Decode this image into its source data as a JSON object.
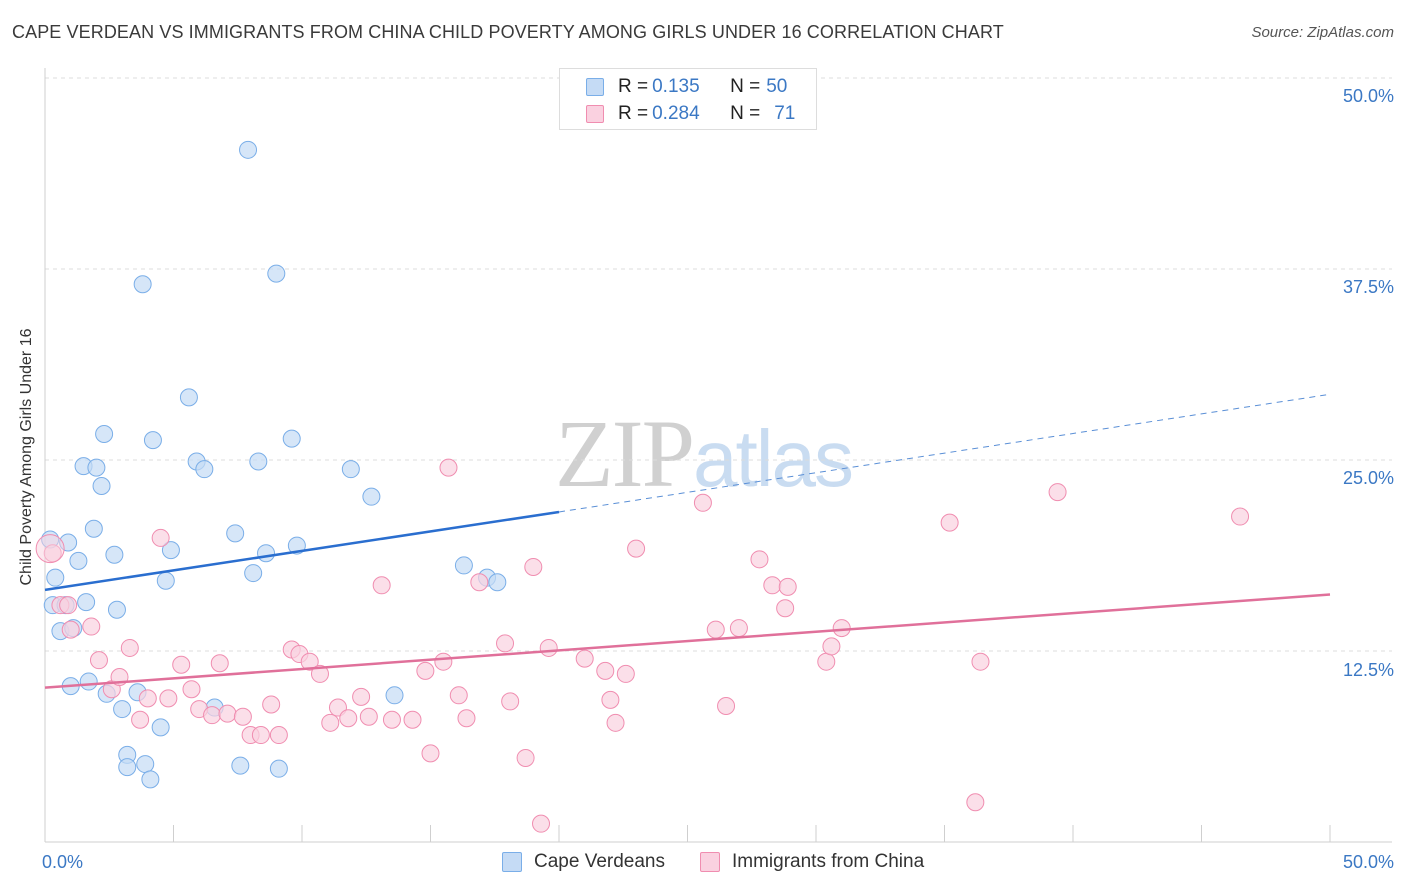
{
  "title": "CAPE VERDEAN VS IMMIGRANTS FROM CHINA CHILD POVERTY AMONG GIRLS UNDER 16 CORRELATION CHART",
  "source": "Source: ZipAtlas.com",
  "watermark": {
    "zip": "ZIP",
    "atlas": "atlas"
  },
  "legend": {
    "rows": [
      {
        "r_label": "R = ",
        "r_value": "0.135",
        "n_label": "N = ",
        "n_value": "50"
      },
      {
        "r_label": "R = ",
        "r_value": "0.284",
        "n_label": "N = ",
        "n_value": "71"
      }
    ]
  },
  "chart_data": {
    "type": "scatter",
    "ylabel": "Child Poverty Among Girls Under 16",
    "xlim": [
      0,
      50
    ],
    "ylim": [
      0,
      50
    ],
    "x_tick_labels": [
      "0.0%",
      "50.0%"
    ],
    "y_ticks": [
      12.5,
      25.0,
      37.5,
      50.0
    ],
    "y_tick_labels": [
      "12.5%",
      "25.0%",
      "37.5%",
      "50.0%"
    ],
    "grid": true,
    "legend_position": "top-center",
    "series": [
      {
        "name": "Cape Verdeans",
        "color": "#7aaee8",
        "fill": "#c5dbf5",
        "trend": {
          "x0": 0,
          "y0": 16.5,
          "x1": 20,
          "y1": 21.6,
          "dashed_to_x": 50,
          "dashed_to_y": 29.3
        },
        "points": [
          [
            0.2,
            19.8
          ],
          [
            0.3,
            15.5
          ],
          [
            0.4,
            17.3
          ],
          [
            0.6,
            13.8
          ],
          [
            0.8,
            15.5
          ],
          [
            0.9,
            19.6
          ],
          [
            1.0,
            10.2
          ],
          [
            1.1,
            14.0
          ],
          [
            1.3,
            18.4
          ],
          [
            1.5,
            24.6
          ],
          [
            1.6,
            15.7
          ],
          [
            1.7,
            10.5
          ],
          [
            1.9,
            20.5
          ],
          [
            2.0,
            24.5
          ],
          [
            2.2,
            23.3
          ],
          [
            2.3,
            26.7
          ],
          [
            2.4,
            9.7
          ],
          [
            2.7,
            18.8
          ],
          [
            2.8,
            15.2
          ],
          [
            3.0,
            8.7
          ],
          [
            3.2,
            5.7
          ],
          [
            3.2,
            4.9
          ],
          [
            3.6,
            9.8
          ],
          [
            3.8,
            36.5
          ],
          [
            3.9,
            5.1
          ],
          [
            4.1,
            4.1
          ],
          [
            4.2,
            26.3
          ],
          [
            4.5,
            7.5
          ],
          [
            4.7,
            17.1
          ],
          [
            4.9,
            19.1
          ],
          [
            5.6,
            29.1
          ],
          [
            5.9,
            24.9
          ],
          [
            6.2,
            24.4
          ],
          [
            6.6,
            8.8
          ],
          [
            7.4,
            20.2
          ],
          [
            7.6,
            5.0
          ],
          [
            7.9,
            45.3
          ],
          [
            8.1,
            17.6
          ],
          [
            8.3,
            24.9
          ],
          [
            8.6,
            18.9
          ],
          [
            9.0,
            37.2
          ],
          [
            9.1,
            4.8
          ],
          [
            9.6,
            26.4
          ],
          [
            9.8,
            19.4
          ],
          [
            11.9,
            24.4
          ],
          [
            12.7,
            22.6
          ],
          [
            13.6,
            9.6
          ],
          [
            16.3,
            18.1
          ],
          [
            17.2,
            17.3
          ],
          [
            17.6,
            17.0
          ]
        ]
      },
      {
        "name": "Immigrants from China",
        "color": "#f08db0",
        "fill": "#fad1e0",
        "trend": {
          "x0": 0,
          "y0": 10.1,
          "x1": 50,
          "y1": 16.2
        },
        "points": [
          [
            0.3,
            18.9
          ],
          [
            0.6,
            15.5
          ],
          [
            0.9,
            15.5
          ],
          [
            1.0,
            13.9
          ],
          [
            1.8,
            14.1
          ],
          [
            2.1,
            11.9
          ],
          [
            2.6,
            10.0
          ],
          [
            2.9,
            10.8
          ],
          [
            3.3,
            12.7
          ],
          [
            3.7,
            8.0
          ],
          [
            4.0,
            9.4
          ],
          [
            4.5,
            19.9
          ],
          [
            4.8,
            9.4
          ],
          [
            5.3,
            11.6
          ],
          [
            5.7,
            10.0
          ],
          [
            6.0,
            8.7
          ],
          [
            6.5,
            8.3
          ],
          [
            6.8,
            11.7
          ],
          [
            7.1,
            8.4
          ],
          [
            7.7,
            8.2
          ],
          [
            8.0,
            7.0
          ],
          [
            8.4,
            7.0
          ],
          [
            8.8,
            9.0
          ],
          [
            9.1,
            7.0
          ],
          [
            9.6,
            12.6
          ],
          [
            9.9,
            12.3
          ],
          [
            10.3,
            11.8
          ],
          [
            10.7,
            11.0
          ],
          [
            11.1,
            7.8
          ],
          [
            11.4,
            8.8
          ],
          [
            11.8,
            8.1
          ],
          [
            12.3,
            9.5
          ],
          [
            12.6,
            8.2
          ],
          [
            13.1,
            16.8
          ],
          [
            13.5,
            8.0
          ],
          [
            14.3,
            8.0
          ],
          [
            14.8,
            11.2
          ],
          [
            15.0,
            5.8
          ],
          [
            15.5,
            11.8
          ],
          [
            15.7,
            24.5
          ],
          [
            16.1,
            9.6
          ],
          [
            16.4,
            8.1
          ],
          [
            16.9,
            17.0
          ],
          [
            17.9,
            13.0
          ],
          [
            18.1,
            9.2
          ],
          [
            18.7,
            5.5
          ],
          [
            19.0,
            18.0
          ],
          [
            19.3,
            1.2
          ],
          [
            19.6,
            12.7
          ],
          [
            21.0,
            12.0
          ],
          [
            21.8,
            11.2
          ],
          [
            22.0,
            9.3
          ],
          [
            22.2,
            7.8
          ],
          [
            22.6,
            11.0
          ],
          [
            23.0,
            19.2
          ],
          [
            25.6,
            22.2
          ],
          [
            26.1,
            13.9
          ],
          [
            26.5,
            8.9
          ],
          [
            27.0,
            14.0
          ],
          [
            27.8,
            18.5
          ],
          [
            28.3,
            16.8
          ],
          [
            28.8,
            15.3
          ],
          [
            28.9,
            16.7
          ],
          [
            30.4,
            11.8
          ],
          [
            30.6,
            12.8
          ],
          [
            31.0,
            14.0
          ],
          [
            35.2,
            20.9
          ],
          [
            36.2,
            2.6
          ],
          [
            36.4,
            11.8
          ],
          [
            39.4,
            22.9
          ],
          [
            46.5,
            21.3
          ]
        ]
      }
    ]
  }
}
